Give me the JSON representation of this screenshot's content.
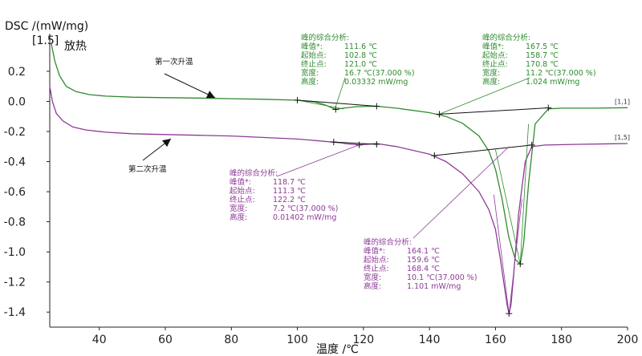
{
  "chart_data": {
    "type": "line",
    "ylabel": "DSC /(mW/mg)",
    "xlabel": "温度 /℃",
    "xlim": [
      25,
      200
    ],
    "ylim": [
      -1.5,
      0.45
    ],
    "x_ticks": [
      40,
      60,
      80,
      100,
      120,
      140,
      160,
      180,
      200
    ],
    "y_ticks": [
      0.2,
      0.0,
      -0.2,
      -0.4,
      -0.6,
      -0.8,
      -1.0,
      -1.2,
      -1.4
    ],
    "y_tick_labels": [
      "0.2",
      "0.0",
      "-0.2",
      "-0.4",
      "-0.6",
      "-0.8",
      "-1.0",
      "-1.2",
      "-1.4"
    ],
    "exo_marker": "[1.5]",
    "exo_label": "放热",
    "colors": {
      "first": "#2e8b2e",
      "second": "#8e3a97"
    },
    "series": [
      {
        "name": "第一次升温",
        "end_tag": "[1,1]",
        "x": [
          25.5,
          26.5,
          28,
          30,
          33,
          37,
          42,
          50,
          60,
          70,
          80,
          90,
          100,
          105,
          108,
          111.6,
          114,
          118,
          124,
          130,
          140,
          145,
          150,
          155,
          158,
          160,
          162,
          164,
          166,
          167.5,
          168.5,
          170,
          172,
          176,
          180,
          190,
          200
        ],
        "values": [
          0.38,
          0.27,
          0.17,
          0.1,
          0.065,
          0.045,
          0.035,
          0.028,
          0.025,
          0.022,
          0.018,
          0.014,
          0.008,
          -0.002,
          -0.02,
          -0.053,
          -0.045,
          -0.035,
          -0.032,
          -0.045,
          -0.075,
          -0.1,
          -0.145,
          -0.23,
          -0.33,
          -0.45,
          -0.65,
          -0.9,
          -1.05,
          -1.08,
          -0.95,
          -0.55,
          -0.15,
          -0.05,
          -0.045,
          -0.045,
          -0.042
        ]
      },
      {
        "name": "第二次升温",
        "end_tag": "[1,5]",
        "x": [
          25,
          25.8,
          27,
          29,
          32,
          36,
          42,
          50,
          60,
          70,
          80,
          90,
          100,
          108,
          113,
          115,
          118.7,
          121,
          124,
          130,
          140,
          145,
          150,
          155,
          158,
          160,
          161.5,
          162.5,
          163.5,
          164.1,
          164.7,
          165.5,
          167,
          169,
          171,
          175,
          185,
          200
        ],
        "values": [
          0.1,
          0.0,
          -0.08,
          -0.13,
          -0.17,
          -0.19,
          -0.205,
          -0.215,
          -0.22,
          -0.225,
          -0.23,
          -0.24,
          -0.25,
          -0.265,
          -0.275,
          -0.282,
          -0.289,
          -0.285,
          -0.28,
          -0.3,
          -0.35,
          -0.4,
          -0.48,
          -0.6,
          -0.72,
          -0.85,
          -1.05,
          -1.2,
          -1.35,
          -1.41,
          -1.35,
          -1.15,
          -0.75,
          -0.4,
          -0.3,
          -0.29,
          -0.285,
          -0.28
        ]
      }
    ],
    "curve_labels": [
      {
        "text": "第一次升温",
        "series": 0
      },
      {
        "text": "第二次升温",
        "series": 1
      }
    ],
    "annotations": [
      {
        "color": "#2e8b2e",
        "title": "峰的综合分析:",
        "rows": [
          [
            "峰值*:",
            "111.6 ℃"
          ],
          [
            "起始点:",
            "102.8 ℃"
          ],
          [
            "终止点:",
            "121.0 ℃"
          ],
          [
            "宽度:",
            "16.7 ℃(37.000 %)"
          ],
          [
            "高度:",
            "0.03332 mW/mg"
          ]
        ]
      },
      {
        "color": "#2e8b2e",
        "title": "峰的综合分析:",
        "rows": [
          [
            "峰值*:",
            "167.5 ℃"
          ],
          [
            "起始点:",
            "158.7 ℃"
          ],
          [
            "终止点:",
            "170.8 ℃"
          ],
          [
            "宽度:",
            "11.2 ℃(37.000 %)"
          ],
          [
            "高度:",
            "1.024 mW/mg"
          ]
        ]
      },
      {
        "color": "#8e3a97",
        "title": "峰的综合分析:",
        "rows": [
          [
            "峰值*:",
            "118.7 ℃"
          ],
          [
            "起始点:",
            "111.3 ℃"
          ],
          [
            "终止点:",
            "122.2 ℃"
          ],
          [
            "宽度:",
            "7.2 ℃(37.000 %)"
          ],
          [
            "高度:",
            "0.01402 mW/mg"
          ]
        ]
      },
      {
        "color": "#8e3a97",
        "title": "峰的综合分析:",
        "rows": [
          [
            "峰值*:",
            "164.1 ℃"
          ],
          [
            "起始点:",
            "159.6 ℃"
          ],
          [
            "终止点:",
            "168.4 ℃"
          ],
          [
            "宽度:",
            "10.1 ℃(37.000 %)"
          ],
          [
            "高度:",
            "1.101 mW/mg"
          ]
        ]
      }
    ]
  }
}
